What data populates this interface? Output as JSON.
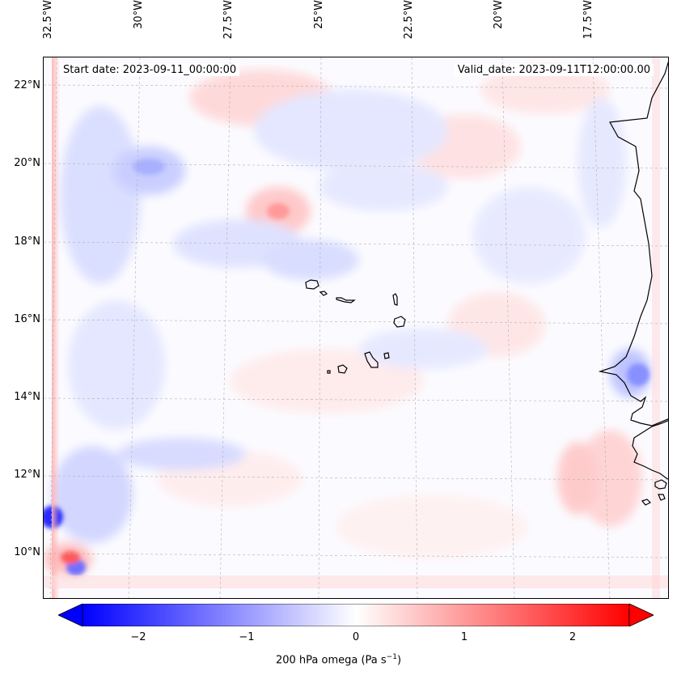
{
  "map": {
    "region": "Cape Verde / West Africa",
    "projection": "lat-lon",
    "start_date": "Start date: 2023-09-11_00:00:00",
    "valid_date": "Valid_date: 2023-09-11T12:00:00.00",
    "lon_range": [
      -33,
      -16.3
    ],
    "lat_range": [
      8.8,
      22.8
    ]
  },
  "lon_labels": [
    "32.5°W",
    "30°W",
    "27.5°W",
    "25°W",
    "22.5°W",
    "20°W",
    "17.5°W"
  ],
  "lat_labels": [
    "22°N",
    "20°N",
    "18°N",
    "16°N",
    "14°N",
    "12°N",
    "10°N"
  ],
  "colorbar": {
    "label": "200 hPa omega (Pa s",
    "label_sup": "−1",
    "label_end": ")",
    "ticks": [
      "−2",
      "−1",
      "0",
      "1",
      "2"
    ],
    "range": [
      -2.5,
      2.5
    ],
    "colormap": "bwr",
    "low_color": "#0000ff",
    "mid_color": "#ffffff",
    "high_color": "#ff0000"
  },
  "colors": {
    "coastline": "#000000",
    "gridline": "#b0b0b0"
  }
}
